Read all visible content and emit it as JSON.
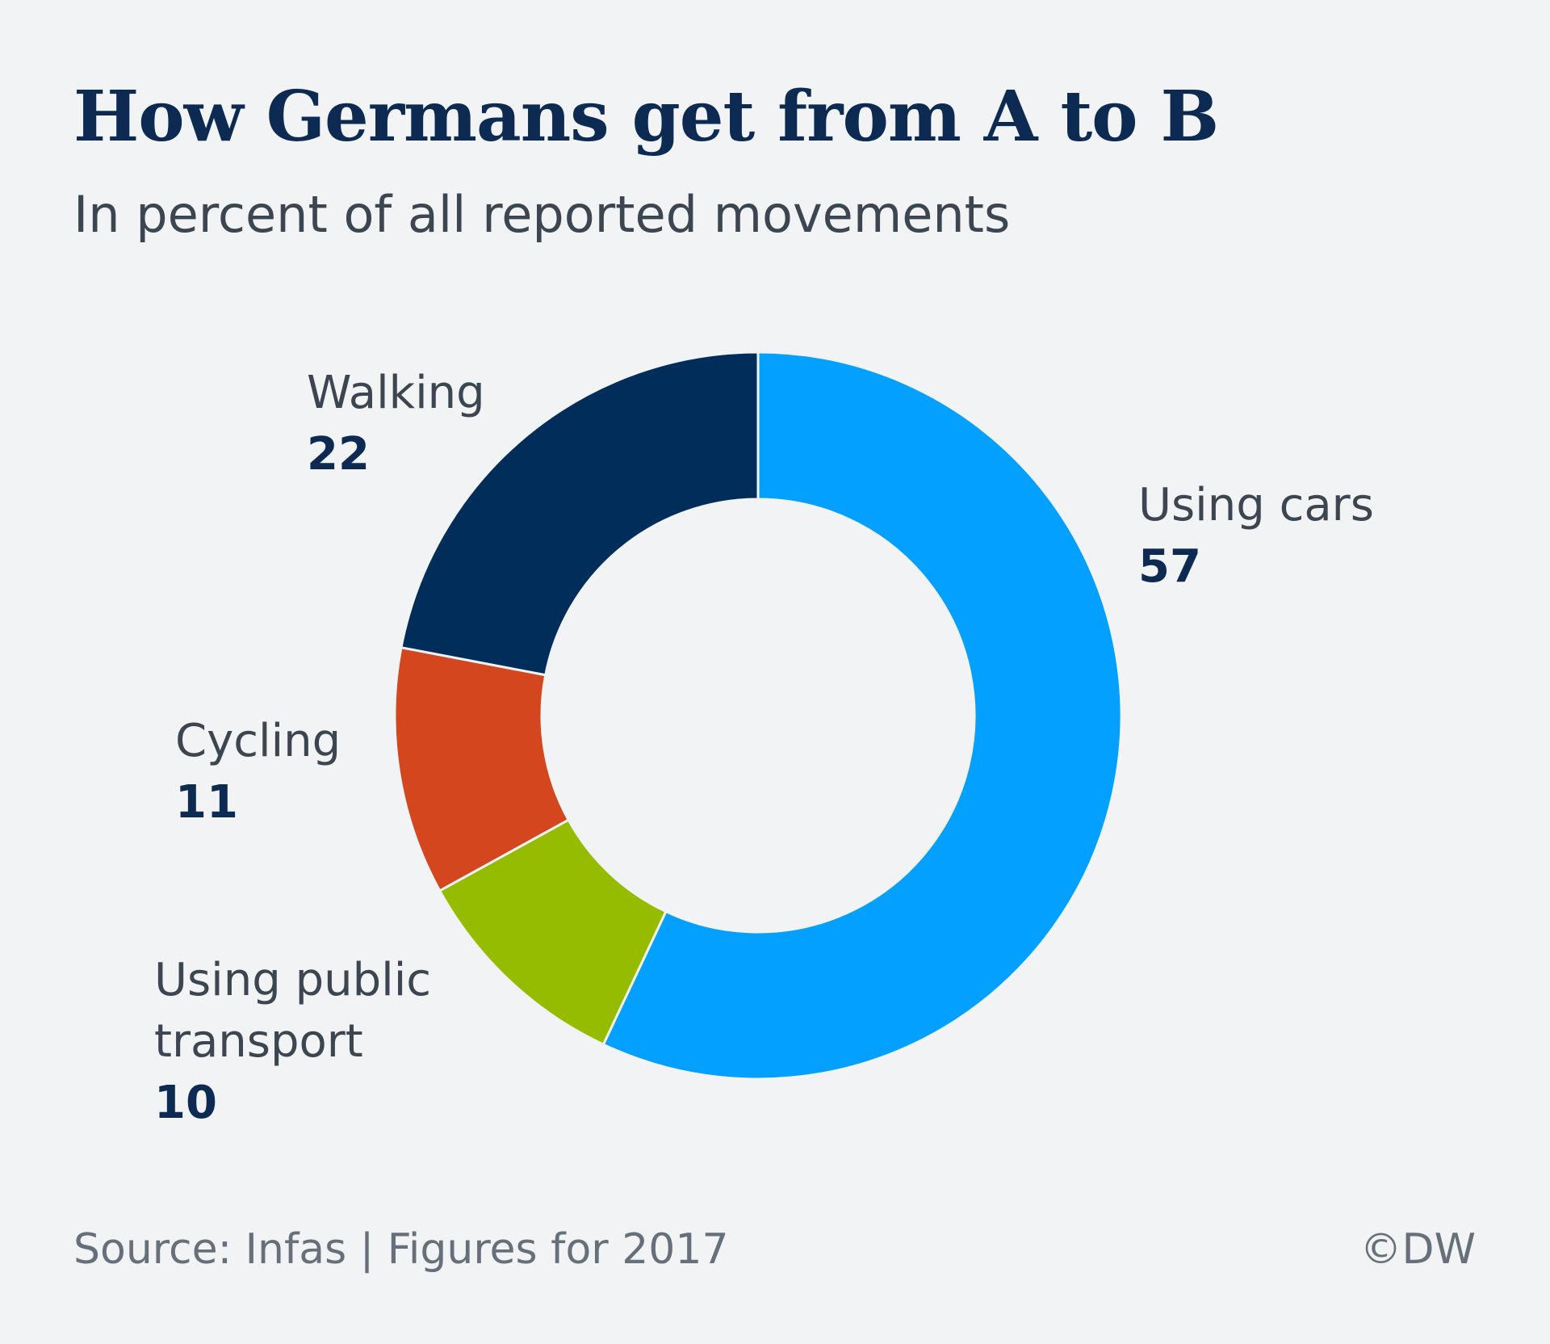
{
  "chart_data": {
    "type": "pie",
    "title": "How Germans get from A to B",
    "subtitle": "In percent of all reported movements",
    "donut": true,
    "slices": [
      {
        "label": "Using cars",
        "value": 57,
        "value_label": "57",
        "color": "#03a0ff"
      },
      {
        "label": "Using public transport",
        "value": 10,
        "value_label": "10",
        "color": "#96bc00"
      },
      {
        "label": "Cycling",
        "value": 11,
        "value_label": "11",
        "color": "#d4461d"
      },
      {
        "label": "Walking",
        "value": 22,
        "value_label": "22",
        "color": "#002d5a"
      }
    ],
    "order": "clockwise from 12 o'clock",
    "source": "Source: Infas | Figures for 2017",
    "credit": "©DW"
  }
}
